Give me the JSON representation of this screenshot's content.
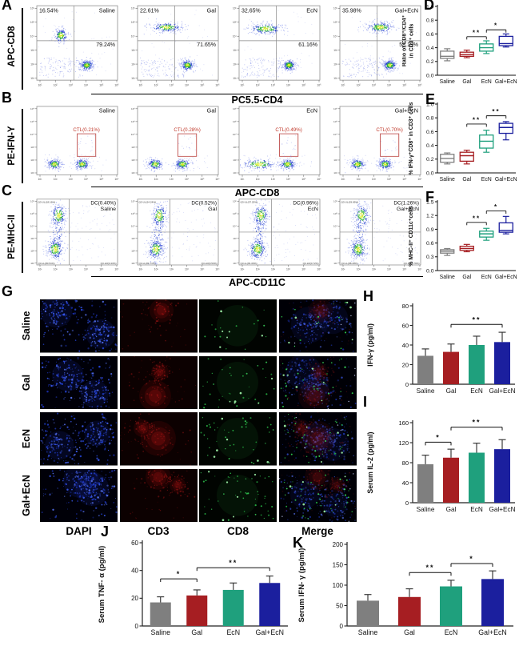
{
  "group_colors": [
    "#7f7f7f",
    "#a61e22",
    "#1fa07d",
    "#1b1f9e"
  ],
  "groups": [
    "Saline",
    "Gal",
    "EcN",
    "Gal+EcN"
  ],
  "flow_rows": [
    {
      "label": "A",
      "y_axis": "APC-CD8",
      "x_axis": "PC5.5-CD4",
      "plots": [
        {
          "group": "Saline",
          "ul": "16.54%",
          "lr": "79.24%"
        },
        {
          "group": "Gal",
          "ul": "22.61%",
          "lr": "71.65%"
        },
        {
          "group": "EcN",
          "ul": "32.65%",
          "lr": "61.16%"
        },
        {
          "group": "Gal+EcN",
          "ul": "35.98%",
          "lr": "58.19%"
        }
      ]
    },
    {
      "label": "B",
      "y_axis": "PE-IFN-Y",
      "x_axis": "APC-CD8",
      "plots": [
        {
          "group": "Saline",
          "gate": "CTL(0.21%)"
        },
        {
          "group": "Gal",
          "gate": "CTL(0.28%)"
        },
        {
          "group": "EcN",
          "gate": "CTL(0.49%)"
        },
        {
          "group": "Gal+EcN",
          "gate": "CTL(0.70%)"
        }
      ]
    },
    {
      "label": "C",
      "y_axis": "PE-MHC-II",
      "x_axis": "APC-CD11C",
      "plots": [
        {
          "group": "Saline",
          "dc": "DC(0.40%)",
          "q_ul": "Q3-UL(18.16%)",
          "q_ll": "Q3-LL(80.51%)",
          "q_lr": "Q3-LR(0.43%)"
        },
        {
          "group": "Gal",
          "dc": "DC(0.52%)",
          "q_ul": "Q3-UL(24.24%)",
          "q_ll": "Q3-LL(84.71%)",
          "q_lr": "Q3-LR(0.53%)"
        },
        {
          "group": "EcN",
          "dc": "DC(0.96%)",
          "q_ul": "Q3-UL(37.25%)",
          "q_ll": "Q3-LL(81.06%)",
          "q_lr": "Q3-LR(0.72%)"
        },
        {
          "group": "Gal+EcN",
          "dc": "DC(1.26%)",
          "q_ul": "Q3-UL(29.69%)",
          "q_ll": "Q3-LL(88.28%)",
          "q_lr": "Q3-LR(0.79%)"
        }
      ]
    }
  ],
  "if_panel": {
    "label": "G",
    "rows": [
      "Saline",
      "Gal",
      "EcN",
      "Gal+EcN"
    ],
    "columns": [
      "DAPI",
      "CD3",
      "CD8",
      "Merge"
    ]
  },
  "chart_data": [
    {
      "panel": "D",
      "type": "box",
      "categories": [
        "Saline",
        "Gal",
        "EcN",
        "Gal+EcN"
      ],
      "ylabel": "Ratio of CD8⁺/CD4⁺\nin CD3⁺ cells",
      "ylim": [
        0,
        1.0
      ],
      "yticks": [
        "0.0",
        "0.2",
        "0.4",
        "0.6",
        "0.8",
        "1.0"
      ],
      "boxes": [
        {
          "lo": 0.21,
          "q1": 0.245,
          "med": 0.275,
          "q3": 0.35,
          "hi": 0.385
        },
        {
          "lo": 0.255,
          "q1": 0.275,
          "med": 0.3,
          "q3": 0.335,
          "hi": 0.365
        },
        {
          "lo": 0.315,
          "q1": 0.35,
          "med": 0.4,
          "q3": 0.455,
          "hi": 0.5
        },
        {
          "lo": 0.41,
          "q1": 0.43,
          "med": 0.46,
          "q3": 0.565,
          "hi": 0.6
        }
      ],
      "sig": [
        {
          "i1": 1,
          "i2": 2,
          "label": "**",
          "y": 0.56
        },
        {
          "i1": 2,
          "i2": 3,
          "label": "*",
          "y": 0.66
        }
      ]
    },
    {
      "panel": "E",
      "type": "box",
      "categories": [
        "Saline",
        "Gal",
        "EcN",
        "Gal+EcN"
      ],
      "ylabel": "% IFN-γ⁺CD8⁺ in CD3⁺ cells",
      "ylim": [
        0,
        1.0
      ],
      "yticks": [
        "0.0",
        "0.2",
        "0.4",
        "0.6",
        "0.8",
        "1.0"
      ],
      "boxes": [
        {
          "lo": 0.13,
          "q1": 0.155,
          "med": 0.21,
          "q3": 0.27,
          "hi": 0.29
        },
        {
          "lo": 0.13,
          "q1": 0.17,
          "med": 0.25,
          "q3": 0.3,
          "hi": 0.33
        },
        {
          "lo": 0.3,
          "q1": 0.36,
          "med": 0.46,
          "q3": 0.55,
          "hi": 0.62
        },
        {
          "lo": 0.48,
          "q1": 0.575,
          "med": 0.66,
          "q3": 0.72,
          "hi": 0.745
        }
      ],
      "sig": [
        {
          "i1": 1,
          "i2": 2,
          "label": "**",
          "y": 0.71
        },
        {
          "i1": 2,
          "i2": 3,
          "label": "**",
          "y": 0.83
        }
      ]
    },
    {
      "panel": "F",
      "type": "box",
      "categories": [
        "Saline",
        "Gal",
        "EcN",
        "Gal+EcN"
      ],
      "ylabel": "% MHC-II⁺ CD11c⁺cells",
      "ylim": [
        0,
        1.5
      ],
      "yticks": [
        "0.0",
        "0.3",
        "0.6",
        "0.9",
        "1.2",
        "1.5"
      ],
      "boxes": [
        {
          "lo": 0.33,
          "q1": 0.38,
          "med": 0.42,
          "q3": 0.455,
          "hi": 0.48
        },
        {
          "lo": 0.41,
          "q1": 0.44,
          "med": 0.48,
          "q3": 0.53,
          "hi": 0.57
        },
        {
          "lo": 0.66,
          "q1": 0.73,
          "med": 0.8,
          "q3": 0.86,
          "hi": 0.92
        },
        {
          "lo": 0.8,
          "q1": 0.835,
          "med": 0.875,
          "q3": 1.04,
          "hi": 1.18
        }
      ],
      "sig": [
        {
          "i1": 1,
          "i2": 2,
          "label": "**",
          "y": 1.05
        },
        {
          "i1": 2,
          "i2": 3,
          "label": "*",
          "y": 1.3
        }
      ]
    },
    {
      "panel": "H",
      "type": "bar",
      "categories": [
        "Saline",
        "Gal",
        "EcN",
        "Gal+EcN"
      ],
      "ylabel": "IFN-γ (pg/ml)",
      "ylim": [
        0,
        80
      ],
      "yticks": [
        "0",
        "20",
        "40",
        "60",
        "80"
      ],
      "values": [
        29,
        33,
        40,
        43
      ],
      "errors": [
        7,
        8,
        9,
        10
      ],
      "sig": [
        {
          "i1": 1,
          "i2": 3,
          "label": "**",
          "y": 61
        }
      ]
    },
    {
      "panel": "I",
      "type": "bar",
      "categories": [
        "Saline",
        "Gal",
        "EcN",
        "Gal+EcN"
      ],
      "ylabel": "Serum IL-2 (pg/ml)",
      "ylim": [
        0,
        160
      ],
      "yticks": [
        "0",
        "40",
        "80",
        "120",
        "160"
      ],
      "values": [
        77,
        90,
        100,
        107
      ],
      "errors": [
        18,
        17,
        19,
        19
      ],
      "sig": [
        {
          "i1": 0,
          "i2": 1,
          "label": "*",
          "y": 121
        },
        {
          "i1": 1,
          "i2": 3,
          "label": "**",
          "y": 151
        }
      ]
    },
    {
      "panel": "J",
      "type": "bar",
      "categories": [
        "Saline",
        "Gal",
        "EcN",
        "Gal+EcN"
      ],
      "ylabel": "Serum TNF- α (pg/ml)",
      "ylim": [
        0,
        60
      ],
      "yticks": [
        "0",
        "20",
        "40",
        "60"
      ],
      "values": [
        17,
        22,
        26,
        31
      ],
      "errors": [
        4,
        4,
        5,
        5
      ],
      "sig": [
        {
          "i1": 0,
          "i2": 1,
          "label": "*",
          "y": 34
        },
        {
          "i1": 1,
          "i2": 3,
          "label": "**",
          "y": 42
        }
      ]
    },
    {
      "panel": "K",
      "type": "bar",
      "categories": [
        "Saline",
        "Gal",
        "EcN",
        "Gal+EcN"
      ],
      "ylabel": "Serum IFN- γ (pg/ml)",
      "ylim": [
        0,
        200
      ],
      "yticks": [
        "0",
        "50",
        "100",
        "150",
        "200"
      ],
      "values": [
        62,
        71,
        97,
        115
      ],
      "errors": [
        15,
        20,
        15,
        20
      ],
      "sig": [
        {
          "i1": 1,
          "i2": 2,
          "label": "**",
          "y": 131
        },
        {
          "i1": 2,
          "i2": 3,
          "label": "*",
          "y": 153
        }
      ]
    }
  ]
}
